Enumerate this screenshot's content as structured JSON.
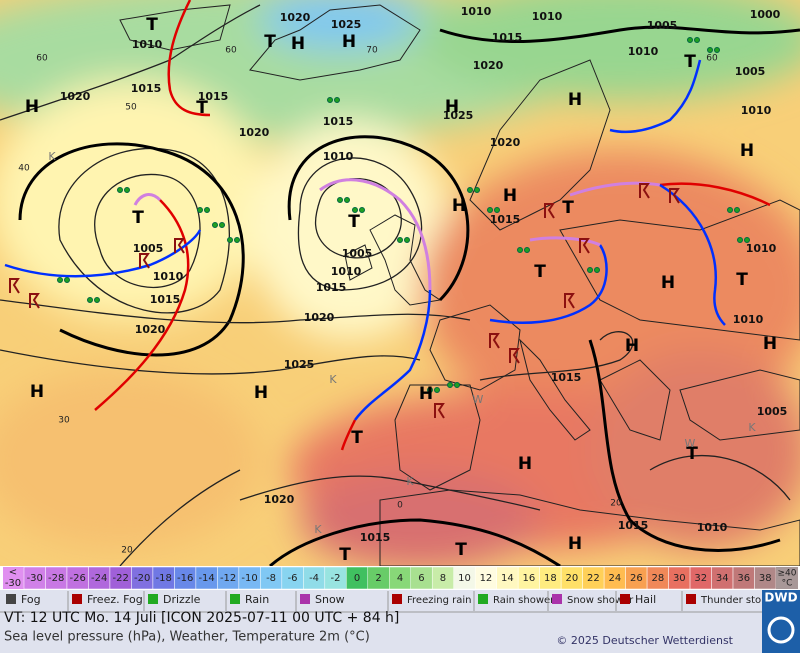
{
  "map": {
    "labels": [
      {
        "text": "1020",
        "kind": "isobar"
      },
      {
        "text": "1025",
        "kind": "isobar"
      },
      {
        "text": "1010",
        "kind": "isobar"
      },
      {
        "text": "1010",
        "kind": "isobar"
      },
      {
        "text": "1000",
        "kind": "isobar"
      },
      {
        "text": "1010",
        "kind": "isobar"
      },
      {
        "text": "1015",
        "kind": "isobar"
      },
      {
        "text": "1020",
        "kind": "isobar"
      },
      {
        "text": "1005",
        "kind": "isobar"
      },
      {
        "text": "1010",
        "kind": "isobar"
      },
      {
        "text": "1005",
        "kind": "isobar"
      },
      {
        "text": "1015",
        "kind": "isobar"
      },
      {
        "text": "1015",
        "kind": "isobar"
      },
      {
        "text": "1020",
        "kind": "isobar"
      },
      {
        "text": "1020",
        "kind": "isobar"
      },
      {
        "text": "1015",
        "kind": "isobar"
      },
      {
        "text": "1025",
        "kind": "isobar"
      },
      {
        "text": "1020",
        "kind": "isobar"
      },
      {
        "text": "1010",
        "kind": "isobar"
      },
      {
        "text": "1010",
        "kind": "isobar"
      },
      {
        "text": "1005",
        "kind": "isobar"
      },
      {
        "text": "1010",
        "kind": "isobar"
      },
      {
        "text": "1015",
        "kind": "isobar"
      },
      {
        "text": "1020",
        "kind": "isobar"
      },
      {
        "text": "1005",
        "kind": "isobar"
      },
      {
        "text": "1010",
        "kind": "isobar"
      },
      {
        "text": "1015",
        "kind": "isobar"
      },
      {
        "text": "1015",
        "kind": "isobar"
      },
      {
        "text": "1010",
        "kind": "isobar"
      },
      {
        "text": "1010",
        "kind": "isobar"
      },
      {
        "text": "1020",
        "kind": "isobar"
      },
      {
        "text": "1025",
        "kind": "isobar"
      },
      {
        "text": "1015",
        "kind": "isobar"
      },
      {
        "text": "1005",
        "kind": "isobar"
      },
      {
        "text": "1020",
        "kind": "isobar"
      },
      {
        "text": "1015",
        "kind": "isobar"
      },
      {
        "text": "1015",
        "kind": "isobar"
      },
      {
        "text": "1010",
        "kind": "isobar"
      },
      {
        "text": "H",
        "kind": "center"
      },
      {
        "text": "T",
        "kind": "center"
      },
      {
        "text": "H",
        "kind": "center"
      },
      {
        "text": "H",
        "kind": "center"
      },
      {
        "text": "T",
        "kind": "center"
      },
      {
        "text": "H",
        "kind": "center"
      },
      {
        "text": "H",
        "kind": "center"
      },
      {
        "text": "T",
        "kind": "center"
      },
      {
        "text": "T",
        "kind": "center"
      },
      {
        "text": "H",
        "kind": "center"
      },
      {
        "text": "T",
        "kind": "center"
      },
      {
        "text": "T",
        "kind": "center"
      },
      {
        "text": "H",
        "kind": "center"
      },
      {
        "text": "H",
        "kind": "center"
      },
      {
        "text": "T",
        "kind": "center"
      },
      {
        "text": "T",
        "kind": "center"
      },
      {
        "text": "H",
        "kind": "center"
      },
      {
        "text": "T",
        "kind": "center"
      },
      {
        "text": "H",
        "kind": "center"
      },
      {
        "text": "H",
        "kind": "center"
      },
      {
        "text": "H",
        "kind": "center"
      },
      {
        "text": "H",
        "kind": "center"
      },
      {
        "text": "H",
        "kind": "center"
      },
      {
        "text": "T",
        "kind": "center"
      },
      {
        "text": "H",
        "kind": "center"
      },
      {
        "text": "T",
        "kind": "center"
      },
      {
        "text": "T",
        "kind": "center"
      },
      {
        "text": "T",
        "kind": "center"
      },
      {
        "text": "H",
        "kind": "center"
      },
      {
        "text": "K",
        "kind": "minor"
      },
      {
        "text": "K",
        "kind": "minor"
      },
      {
        "text": "W",
        "kind": "minor"
      },
      {
        "text": "W",
        "kind": "minor"
      },
      {
        "text": "K",
        "kind": "minor"
      },
      {
        "text": "K",
        "kind": "minor"
      },
      {
        "text": "K",
        "kind": "minor"
      },
      {
        "text": "60",
        "kind": "grid"
      },
      {
        "text": "50",
        "kind": "grid"
      },
      {
        "text": "40",
        "kind": "grid"
      },
      {
        "text": "30",
        "kind": "grid"
      },
      {
        "text": "20",
        "kind": "grid"
      },
      {
        "text": "70",
        "kind": "grid"
      },
      {
        "text": "60",
        "kind": "grid"
      },
      {
        "text": "0",
        "kind": "grid"
      },
      {
        "text": "20",
        "kind": "grid"
      },
      {
        "text": "60",
        "kind": "grid"
      }
    ]
  },
  "scale": {
    "first": [
      "<",
      "-30"
    ],
    "steps": [
      {
        "label": "-30",
        "color": "#d080e8"
      },
      {
        "label": "-28",
        "color": "#c878e4"
      },
      {
        "label": "-26",
        "color": "#c070e0"
      },
      {
        "label": "-24",
        "color": "#b068dc"
      },
      {
        "label": "-22",
        "color": "#a060d8"
      },
      {
        "label": "-20",
        "color": "#8070e0"
      },
      {
        "label": "-18",
        "color": "#7078e4"
      },
      {
        "label": "-16",
        "color": "#6888e8"
      },
      {
        "label": "-14",
        "color": "#6898ec"
      },
      {
        "label": "-12",
        "color": "#70a8f0"
      },
      {
        "label": "-10",
        "color": "#78b8f4"
      },
      {
        "label": "-8",
        "color": "#80c8f4"
      },
      {
        "label": "-6",
        "color": "#88d4f0"
      },
      {
        "label": "-4",
        "color": "#90dce8"
      },
      {
        "label": "-2",
        "color": "#98e4e0"
      },
      {
        "label": "0",
        "color": "#40c060"
      },
      {
        "label": "2",
        "color": "#68cc68"
      },
      {
        "label": "4",
        "color": "#88d878"
      },
      {
        "label": "6",
        "color": "#a8e090"
      },
      {
        "label": "8",
        "color": "#c8eca8"
      },
      {
        "label": "10",
        "color": "#f4f8e8"
      },
      {
        "label": "12",
        "color": "#fffce0"
      },
      {
        "label": "14",
        "color": "#fff8c0"
      },
      {
        "label": "16",
        "color": "#fff4a0"
      },
      {
        "label": "18",
        "color": "#ffec80"
      },
      {
        "label": "20",
        "color": "#ffe068"
      },
      {
        "label": "22",
        "color": "#ffd058"
      },
      {
        "label": "24",
        "color": "#ffbc50"
      },
      {
        "label": "26",
        "color": "#f8a050"
      },
      {
        "label": "28",
        "color": "#f08858"
      },
      {
        "label": "30",
        "color": "#e87060"
      },
      {
        "label": "32",
        "color": "#e06868"
      },
      {
        "label": "34",
        "color": "#d07070"
      },
      {
        "label": "36",
        "color": "#c07878"
      },
      {
        "label": "38",
        "color": "#b08888"
      }
    ],
    "last": [
      "≥40",
      "°C"
    ]
  },
  "weather_legend": [
    "Fog",
    "Freez. Fog",
    "Drizzle",
    "Rain",
    "Snow",
    "Freezing rain",
    "Rain shower",
    "Snow shower",
    "Hail",
    "Thunder storm"
  ],
  "footer": {
    "valid_time": "VT: 12 UTC Mo.  14 Juli [ICON 2025-07-11  00 UTC + 84 h]",
    "description": "Sea level pressure (hPa), Weather, Temperature 2m (°C)",
    "copyright": "© 2025 Deutscher Wetterdienst",
    "logo": "DWD"
  }
}
